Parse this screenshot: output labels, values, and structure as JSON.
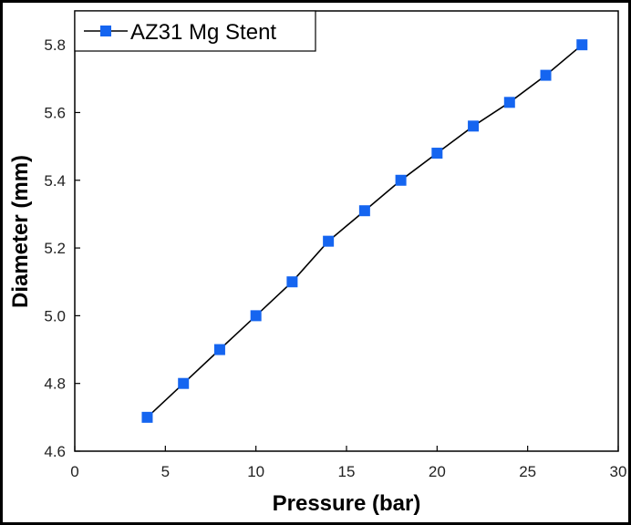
{
  "chart_data": {
    "type": "line",
    "xlabel": "Pressure (bar)",
    "ylabel": "Diameter (mm)",
    "xlim": [
      0,
      30
    ],
    "ylim": [
      4.6,
      5.9
    ],
    "x_ticks": [
      0,
      5,
      10,
      15,
      20,
      25,
      30
    ],
    "y_ticks": [
      4.6,
      4.8,
      5.0,
      5.2,
      5.4,
      5.6,
      5.8
    ],
    "x_tick_labels": [
      "0",
      "5",
      "10",
      "15",
      "20",
      "25",
      "30"
    ],
    "y_tick_labels": [
      "4.6",
      "4.8",
      "5.0",
      "5.2",
      "5.4",
      "5.6",
      "5.8"
    ],
    "grid": false,
    "legend_position": "top-left",
    "series": [
      {
        "name": "AZ31 Mg Stent",
        "marker": "square",
        "line_color": "#000000",
        "marker_color": "#1565f0",
        "x": [
          4,
          6,
          8,
          10,
          12,
          14,
          16,
          18,
          20,
          22,
          24,
          26,
          28
        ],
        "y": [
          4.7,
          4.8,
          4.9,
          5.0,
          5.1,
          5.22,
          5.31,
          5.4,
          5.48,
          5.56,
          5.63,
          5.71,
          5.8
        ]
      }
    ]
  }
}
